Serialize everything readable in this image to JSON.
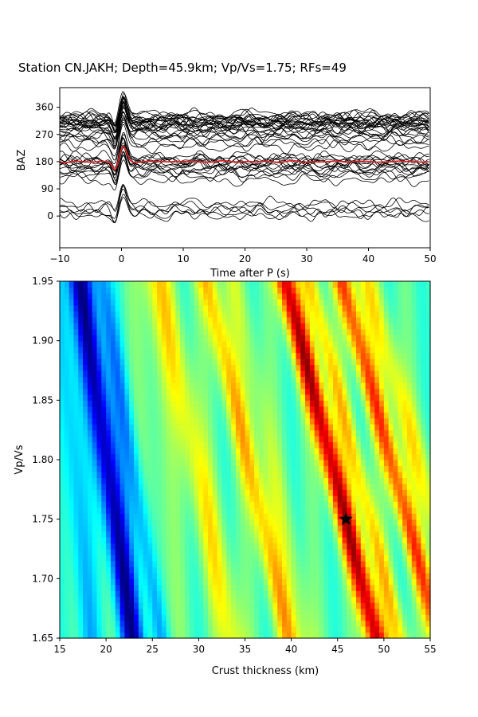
{
  "title": "Station CN.JAKH; Depth=45.9km; Vp/Vs=1.75; RFs=49",
  "chart_data": [
    {
      "type": "line",
      "panel": "receiver-functions",
      "xlabel": "Time after P (s)",
      "ylabel": "BAZ",
      "xlim": [
        -10,
        50
      ],
      "ylim": [
        -105,
        425
      ],
      "x_ticks": [
        -10,
        0,
        10,
        20,
        30,
        40,
        50
      ],
      "y_ticks": [
        0,
        90,
        180,
        270,
        360
      ],
      "trace_count": 49,
      "trace_color": "#000000",
      "stack_color": "#d62728",
      "trace_baz": [
        3,
        8,
        14,
        22,
        34,
        42,
        118,
        132,
        140,
        148,
        152,
        158,
        164,
        168,
        172,
        176,
        180,
        184,
        188,
        192,
        196,
        228,
        240,
        250,
        258,
        264,
        270,
        274,
        280,
        286,
        290,
        294,
        298,
        300,
        302,
        304,
        306,
        308,
        310,
        312,
        314,
        316,
        318,
        320,
        322,
        326,
        330,
        334,
        338
      ],
      "stack_baz": 180
    },
    {
      "type": "heatmap",
      "panel": "h-k-stacking",
      "xlabel": "Crust thickness (km)",
      "ylabel": "Vp/Vs",
      "xlim": [
        15,
        55
      ],
      "ylim": [
        1.65,
        1.95
      ],
      "x_ticks": [
        15,
        20,
        25,
        30,
        35,
        40,
        45,
        50,
        55
      ],
      "y_ticks": [
        "1.65",
        "1.70",
        "1.75",
        "1.80",
        "1.85",
        "1.90",
        "1.95"
      ],
      "colormap": "jet",
      "best_point": {
        "H": 45.9,
        "k": 1.75,
        "marker": "star-icon",
        "color": "#000000"
      }
    }
  ]
}
